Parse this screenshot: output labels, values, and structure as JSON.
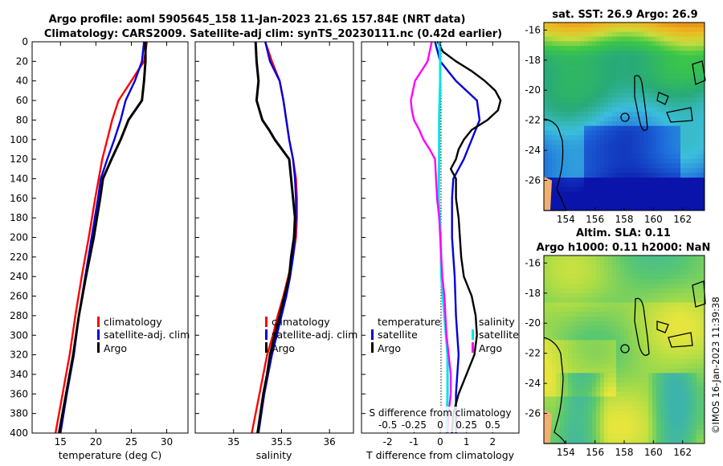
{
  "figure": {
    "title_line1": "Argo profile: aoml 5905645_158 11-Jan-2023 21.6S 157.84E (NRT data)",
    "title_line2": "Climatology: CARS2009. Satellite-adj clim: synTS_20230111.nc (0.42d earlier)",
    "stamp": "©IMOS 16-Jan-2023 11:39:38"
  },
  "colors": {
    "climatology": "#ff0000",
    "satellite": "#0000dd",
    "argo": "#000000",
    "s_diff": "#ff00ff",
    "s_sat": "#00e5e5"
  },
  "chart_data": [
    {
      "type": "line",
      "name": "temperature",
      "xlabel": "temperature (deg C)",
      "ylabel": "",
      "xlim": [
        11,
        33
      ],
      "ylim": [
        400,
        0
      ],
      "xticks": [
        15,
        20,
        25,
        30
      ],
      "xtick_labels": [
        "15",
        "20",
        "25",
        "30"
      ],
      "yticks": [
        0,
        20,
        40,
        60,
        80,
        100,
        120,
        140,
        160,
        180,
        200,
        220,
        240,
        260,
        280,
        300,
        320,
        340,
        360,
        380,
        400
      ],
      "legend": [
        "climatology",
        "satellite-adj. clim",
        "Argo"
      ],
      "series": [
        {
          "name": "climatology",
          "depth": [
            0,
            20,
            40,
            60,
            80,
            100,
            120,
            140,
            160,
            200,
            240,
            280,
            320,
            360,
            400
          ],
          "values": [
            27.2,
            26.8,
            25.0,
            23.2,
            22.3,
            21.6,
            20.9,
            20.4,
            19.9,
            19.0,
            18.0,
            17.1,
            16.3,
            15.3,
            14.3
          ]
        },
        {
          "name": "satellite-adj. clim",
          "depth": [
            0,
            20,
            40,
            60,
            80,
            100,
            120,
            140,
            160,
            200,
            240,
            280,
            320,
            360,
            400
          ],
          "values": [
            26.8,
            26.5,
            25.5,
            24.2,
            23.5,
            22.6,
            21.6,
            20.7,
            20.3,
            19.4,
            18.5,
            17.6,
            16.9,
            15.9,
            15.0
          ]
        },
        {
          "name": "Argo",
          "depth": [
            0,
            20,
            40,
            60,
            80,
            100,
            120,
            140,
            160,
            200,
            240,
            280,
            320,
            360,
            400
          ],
          "values": [
            27.0,
            27.0,
            26.8,
            26.5,
            24.6,
            23.5,
            22.2,
            21.0,
            20.6,
            19.7,
            18.6,
            17.6,
            16.8,
            15.8,
            14.8
          ]
        }
      ]
    },
    {
      "type": "line",
      "name": "salinity",
      "xlabel": "salinity",
      "xlim": [
        34.6,
        36.25
      ],
      "ylim": [
        400,
        0
      ],
      "xticks": [
        35,
        35.5,
        36
      ],
      "xtick_labels": [
        "35",
        "35.5",
        "36"
      ],
      "legend": [
        "climatology",
        "satellite-adj. clim",
        "Argo"
      ],
      "series": [
        {
          "name": "climatology",
          "depth": [
            0,
            20,
            40,
            60,
            80,
            100,
            120,
            140,
            160,
            180,
            200,
            220,
            240,
            260,
            280,
            300,
            320,
            340,
            360,
            380,
            400
          ],
          "values": [
            35.33,
            35.4,
            35.48,
            35.52,
            35.55,
            35.58,
            35.62,
            35.65,
            35.66,
            35.66,
            35.65,
            35.62,
            35.57,
            35.52,
            35.46,
            35.41,
            35.35,
            35.31,
            35.27,
            35.23,
            35.19
          ]
        },
        {
          "name": "satellite-adj. clim",
          "depth": [
            0,
            20,
            40,
            60,
            80,
            100,
            120,
            140,
            160,
            180,
            200,
            220,
            240,
            260,
            280,
            300,
            320,
            340,
            360,
            380,
            400
          ],
          "values": [
            35.33,
            35.38,
            35.48,
            35.52,
            35.55,
            35.58,
            35.62,
            35.64,
            35.65,
            35.65,
            35.64,
            35.62,
            35.59,
            35.55,
            35.5,
            35.45,
            35.4,
            35.36,
            35.32,
            35.29,
            35.26
          ]
        },
        {
          "name": "Argo",
          "depth": [
            0,
            20,
            40,
            60,
            80,
            90,
            100,
            120,
            140,
            160,
            180,
            200,
            220,
            240,
            260,
            280,
            300,
            320,
            340,
            360,
            380,
            400
          ],
          "values": [
            35.23,
            35.24,
            35.26,
            35.24,
            35.3,
            35.37,
            35.43,
            35.58,
            35.6,
            35.62,
            35.64,
            35.63,
            35.6,
            35.58,
            35.53,
            35.48,
            35.43,
            35.38,
            35.35,
            35.31,
            35.28,
            35.25
          ]
        }
      ]
    },
    {
      "type": "line",
      "name": "difference",
      "xlabel": "T difference from climatology",
      "xlabel_top": "S difference from climatology",
      "xlim": [
        -3,
        3
      ],
      "ylim": [
        400,
        0
      ],
      "xticks": [
        -2,
        -1,
        0,
        1,
        2
      ],
      "xtick_labels": [
        "-2",
        "-1",
        "0",
        "1",
        "2"
      ],
      "s_xticks": [
        -0.5,
        -0.25,
        0,
        0.25,
        0.5
      ],
      "s_xtick_labels": [
        "-0.5",
        "-0.25",
        "0",
        "0.25",
        "0.5"
      ],
      "s_scale": 4,
      "legend_left_title": "temperature",
      "legend_right_title": "salinity",
      "legend_left": [
        "satellite",
        "Argo"
      ],
      "legend_right": [
        "satellite",
        "Argo"
      ],
      "series": [
        {
          "name": "T satellite",
          "depth": [
            0,
            20,
            40,
            60,
            80,
            100,
            120,
            140,
            160,
            200,
            240,
            280,
            320,
            360,
            400
          ],
          "values": [
            -0.2,
            0.0,
            0.6,
            1.4,
            1.5,
            1.2,
            0.9,
            0.5,
            0.45,
            0.45,
            0.55,
            0.6,
            0.7,
            0.6,
            0.6
          ]
        },
        {
          "name": "T Argo",
          "depth": [
            0,
            10,
            20,
            30,
            40,
            50,
            60,
            70,
            80,
            90,
            100,
            110,
            120,
            130,
            140,
            160,
            180,
            200,
            220,
            240,
            260,
            280,
            300,
            320,
            340,
            360,
            380,
            400
          ],
          "values": [
            -0.1,
            0.1,
            0.6,
            1.2,
            1.7,
            2.1,
            2.3,
            2.2,
            1.8,
            1.2,
            0.9,
            0.7,
            0.6,
            0.4,
            0.6,
            0.6,
            0.7,
            0.75,
            0.8,
            0.9,
            1.2,
            1.35,
            1.4,
            1.3,
            1.0,
            0.7,
            0.5,
            0.45
          ]
        },
        {
          "name": "S satellite",
          "depth": [
            0,
            20,
            40,
            60,
            80,
            100,
            120,
            160,
            200,
            240,
            280,
            320,
            360,
            400
          ],
          "values": [
            -0.01,
            0.0,
            0.0,
            -0.005,
            -0.01,
            -0.01,
            -0.01,
            -0.015,
            0.005,
            0.01,
            0.04,
            0.07,
            0.07,
            0.06
          ]
        },
        {
          "name": "S Argo",
          "depth": [
            0,
            20,
            30,
            40,
            50,
            60,
            70,
            80,
            90,
            100,
            110,
            120,
            140,
            160,
            180,
            200,
            220,
            240,
            260,
            280,
            300,
            320,
            340,
            360,
            380,
            400
          ],
          "values": [
            -0.08,
            -0.12,
            -0.18,
            -0.24,
            -0.26,
            -0.28,
            -0.27,
            -0.25,
            -0.2,
            -0.16,
            -0.1,
            -0.05,
            -0.04,
            -0.03,
            -0.01,
            0.0,
            0.01,
            0.02,
            0.04,
            0.05,
            0.06,
            0.08,
            0.1,
            0.1,
            0.08,
            0.07
          ]
        }
      ]
    },
    {
      "type": "heatmap",
      "name": "sst_map",
      "title": "sat. SST: 26.9 Argo: 26.9",
      "xlim": [
        152.5,
        163.5
      ],
      "ylim": [
        -28,
        -15.5
      ],
      "xticks": [
        154,
        156,
        158,
        160,
        162
      ],
      "yticks": [
        -16,
        -18,
        -20,
        -22,
        -24,
        -26
      ],
      "xtick_labels": [
        "154",
        "156",
        "158",
        "160",
        "162"
      ],
      "ytick_labels": [
        "-16",
        "-18",
        "-20",
        "-22",
        "-24",
        "-26"
      ],
      "argo_position": [
        157.84,
        -21.6
      ]
    },
    {
      "type": "heatmap",
      "name": "sla_map",
      "title_line1": "Altim. SLA: 0.11",
      "title_line2": "Argo h1000: 0.11 h2000: NaN",
      "xlim": [
        152.5,
        163.5
      ],
      "ylim": [
        -28,
        -15.5
      ],
      "xticks": [
        154,
        156,
        158,
        160,
        162
      ],
      "yticks": [
        -16,
        -18,
        -20,
        -22,
        -24,
        -26
      ],
      "xtick_labels": [
        "154",
        "156",
        "158",
        "160",
        "162"
      ],
      "ytick_labels": [
        "-16",
        "-18",
        "-20",
        "-22",
        "-24",
        "-26"
      ],
      "argo_position": [
        157.84,
        -21.6
      ]
    }
  ]
}
